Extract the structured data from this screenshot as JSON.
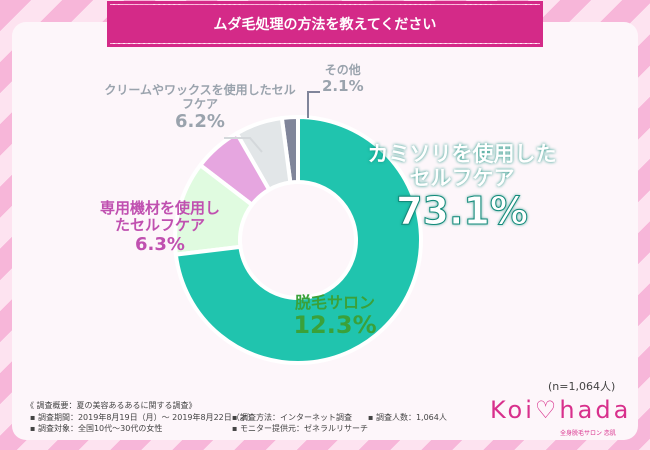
{
  "title": "ムダ毛処理の方法を教えてください",
  "chart_data": {
    "type": "pie",
    "donut": true,
    "slices": [
      {
        "label": "カミソリを使用したセルフケア",
        "value": 73.1,
        "color": "#20c4ae",
        "text": "73.1%"
      },
      {
        "label": "脱毛サロン",
        "value": 12.3,
        "color": "#e0fbe0",
        "text": "12.3%"
      },
      {
        "label": "専用機材を使用したセルフケア",
        "value": 6.3,
        "color": "#e6a6e0",
        "text": "6.3%"
      },
      {
        "label": "クリームやワックスを使用したセルフケア",
        "value": 6.2,
        "color": "#e2e6e8",
        "text": "6.2%"
      },
      {
        "label": "その他",
        "value": 2.1,
        "color": "#80859a",
        "text": "2.1%"
      }
    ]
  },
  "sample": "(n=1,064人)",
  "notes": {
    "heading": "《 調査概要：夏の美容あるあるに関する調査》",
    "period": "▪ 調査期間：2019年8月19日（月）～ 2019年8月22日（木）",
    "method": "▪ 調査方法：インターネット調査",
    "count": "▪ 調査人数：1,064人",
    "target": "▪ 調査対象：全国10代～30代の女性",
    "provider": "▪ モニター提供元：ゼネラルリサーチ"
  },
  "logo": {
    "text": "Koi♡hada",
    "sub": "全身脱毛サロン 恋肌"
  }
}
